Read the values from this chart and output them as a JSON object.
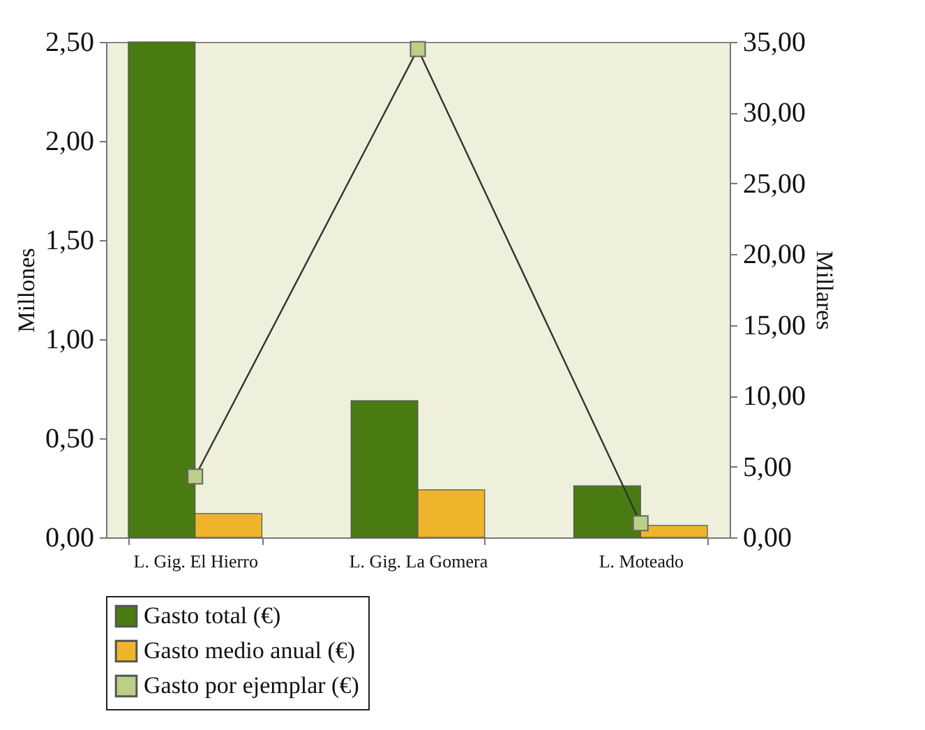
{
  "chart_data": {
    "type": "bar",
    "categories": [
      "L. Gig. El Hierro",
      "L. Gig. La Gomera",
      "L. Moteado"
    ],
    "ylabel": "Millones",
    "y2label": "Millares",
    "ylim": [
      0,
      2.5
    ],
    "yticks": [
      {
        "value": 0,
        "label": "0,00"
      },
      {
        "value": 0.5,
        "label": "0,50"
      },
      {
        "value": 1,
        "label": "1,00"
      },
      {
        "value": 1.5,
        "label": "1,50"
      },
      {
        "value": 2,
        "label": "2,00"
      },
      {
        "value": 2.5,
        "label": "2,50"
      }
    ],
    "y2lim": [
      0,
      35
    ],
    "y2ticks": [
      {
        "value": 0,
        "label": "0,00"
      },
      {
        "value": 5,
        "label": "5,00"
      },
      {
        "value": 10,
        "label": "10,00"
      },
      {
        "value": 15,
        "label": "15,00"
      },
      {
        "value": 20,
        "label": "20,00"
      },
      {
        "value": 25,
        "label": "25,00"
      },
      {
        "value": 30,
        "label": "30,00"
      },
      {
        "value": 35,
        "label": "35,00"
      }
    ],
    "series": [
      {
        "name": "Gasto total (€)",
        "color": "#4a7a12",
        "values": [
          2.5,
          0.69,
          0.26
        ]
      },
      {
        "name": "Gasto medio anual (€)",
        "color": "#eeb52c",
        "values": [
          0.12,
          0.24,
          0.06
        ]
      },
      {
        "name": "Gasto por ejemplar (€)",
        "type": "line",
        "axis": "y2",
        "marker": "square",
        "color": "#bccf86",
        "values": [
          4.3,
          34.5,
          1.0
        ]
      }
    ],
    "grid": false,
    "legend": "bottom"
  }
}
